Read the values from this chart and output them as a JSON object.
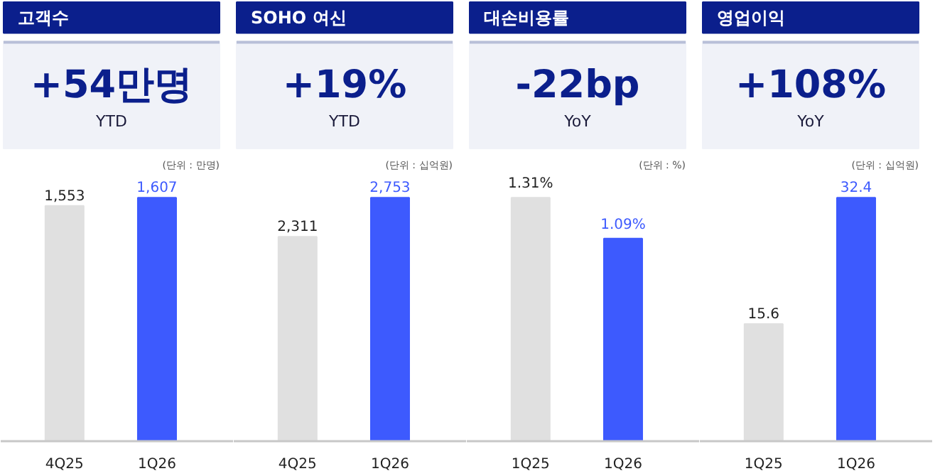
{
  "chart_data": [
    {
      "type": "bar",
      "title": "고객수",
      "annotations": [
        "+54만명",
        "YTD",
        "(단위 : 만명)"
      ],
      "categories": [
        "4Q25",
        "1Q26"
      ],
      "values": [
        1553,
        1607
      ],
      "value_labels": [
        "1,553",
        "1,607"
      ],
      "colors": [
        "#e0e0e0",
        "#3d5afe"
      ],
      "tick_labels": "x"
    },
    {
      "type": "bar",
      "title": "SOHO 여신",
      "annotations": [
        "+19%",
        "YTD",
        "(단위 : 십억원)"
      ],
      "categories": [
        "4Q25",
        "1Q26"
      ],
      "values": [
        2311,
        2753
      ],
      "value_labels": [
        "2,311",
        "2,753"
      ],
      "colors": [
        "#e0e0e0",
        "#3d5afe"
      ],
      "tick_labels": "x"
    },
    {
      "type": "bar",
      "title": "대손비용률",
      "annotations": [
        "-22bp",
        "YoY",
        "(단위 : %)"
      ],
      "categories": [
        "1Q25",
        "1Q26"
      ],
      "values": [
        1.31,
        1.09
      ],
      "value_labels": [
        "1.31%",
        "1.09%"
      ],
      "colors": [
        "#e0e0e0",
        "#3d5afe"
      ],
      "tick_labels": "x"
    },
    {
      "type": "bar",
      "title": "영업이익",
      "annotations": [
        "+108%",
        "YoY",
        "(단위 : 십억원)"
      ],
      "categories": [
        "1Q25",
        "1Q26"
      ],
      "values": [
        15.6,
        32.4
      ],
      "value_labels": [
        "15.6",
        "32.4"
      ],
      "colors": [
        "#e0e0e0",
        "#3d5afe"
      ],
      "tick_labels": "x"
    }
  ]
}
